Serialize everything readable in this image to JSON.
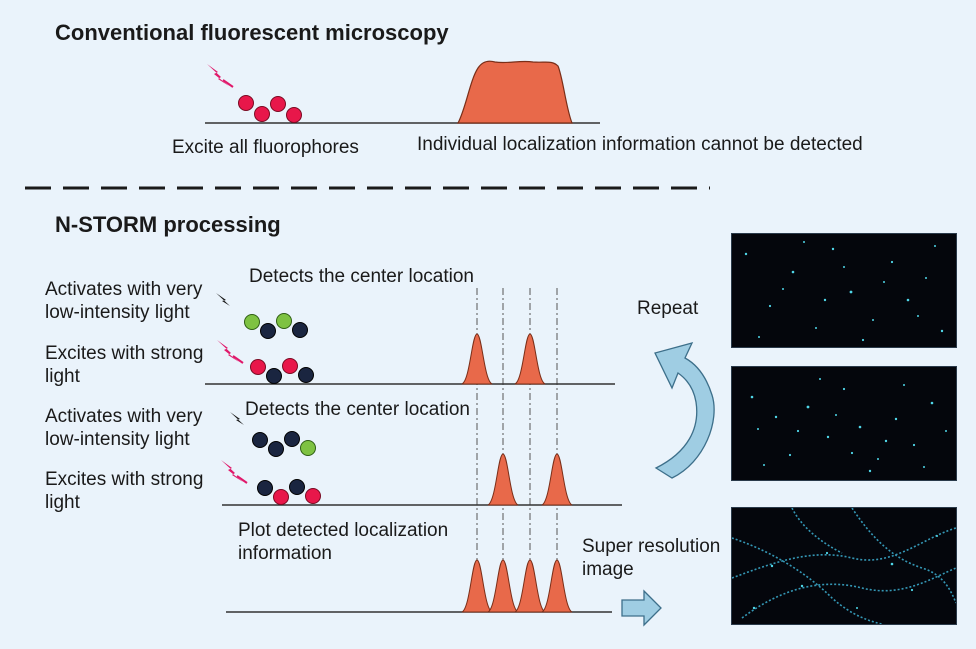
{
  "sections": {
    "conventional": {
      "title": "Conventional fluorescent microscopy",
      "excite_label": "Excite all fluorophores",
      "no_localization_label": "Individual localization information cannot be detected"
    },
    "nstorm": {
      "title": "N-STORM processing",
      "cycle1": {
        "activate_label": "Activates with very low-intensity light",
        "excite_label": "Excites with strong light",
        "detect_label": "Detects the center location"
      },
      "cycle2": {
        "activate_label": "Activates with very low-intensity light",
        "excite_label": "Excites with strong light",
        "detect_label": "Detects the center location"
      },
      "plot_label": "Plot detected localization information",
      "repeat_label": "Repeat",
      "result_label": "Super resolution image"
    }
  },
  "colors": {
    "background": "#eaf3fb",
    "peak_fill": "#e8694a",
    "fluorophore_red": "#e8174a",
    "fluorophore_green": "#7ec242",
    "fluorophore_dark": "#1a2540",
    "lightning": "#e0186a",
    "arrow_blue": "#9fcde3",
    "panel_bg": "#04060c",
    "dot_cyan": "#4fd6e8"
  }
}
